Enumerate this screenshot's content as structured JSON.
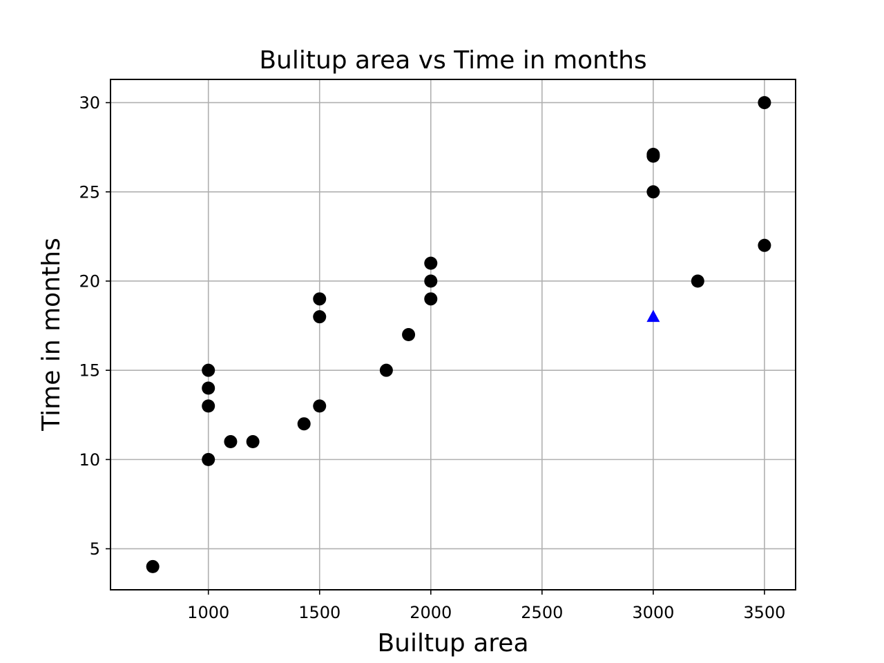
{
  "chart_data": {
    "type": "scatter",
    "title": "Bulitup area vs Time in months",
    "xlabel": "Builtup area",
    "ylabel": "Time in months",
    "xlim": [
      560,
      3640
    ],
    "ylim": [
      2.7,
      31.3
    ],
    "xticks": [
      1000,
      1500,
      2000,
      2500,
      3000,
      3500
    ],
    "yticks": [
      5,
      10,
      15,
      20,
      25,
      30
    ],
    "xtick_labels": [
      "1000",
      "1500",
      "2000",
      "2500",
      "3000",
      "3500"
    ],
    "ytick_labels": [
      "5",
      "10",
      "15",
      "20",
      "25",
      "30"
    ],
    "grid": true,
    "series": [
      {
        "marker": "circle",
        "color": "#000000",
        "points": [
          [
            750,
            4
          ],
          [
            1000,
            10
          ],
          [
            1000,
            13
          ],
          [
            1000,
            14
          ],
          [
            1000,
            15
          ],
          [
            1100,
            11
          ],
          [
            1200,
            11
          ],
          [
            1430,
            12
          ],
          [
            1500,
            13
          ],
          [
            1500,
            18
          ],
          [
            1500,
            19
          ],
          [
            1800,
            15
          ],
          [
            1900,
            17
          ],
          [
            2000,
            19
          ],
          [
            2000,
            20
          ],
          [
            2000,
            21
          ],
          [
            3000,
            25
          ],
          [
            3000,
            27
          ],
          [
            3000,
            27.1
          ],
          [
            3200,
            20
          ],
          [
            3500,
            22
          ],
          [
            3500,
            30
          ]
        ]
      },
      {
        "marker": "triangle",
        "color": "#0000ff",
        "points": [
          [
            3000,
            18
          ]
        ]
      }
    ]
  }
}
